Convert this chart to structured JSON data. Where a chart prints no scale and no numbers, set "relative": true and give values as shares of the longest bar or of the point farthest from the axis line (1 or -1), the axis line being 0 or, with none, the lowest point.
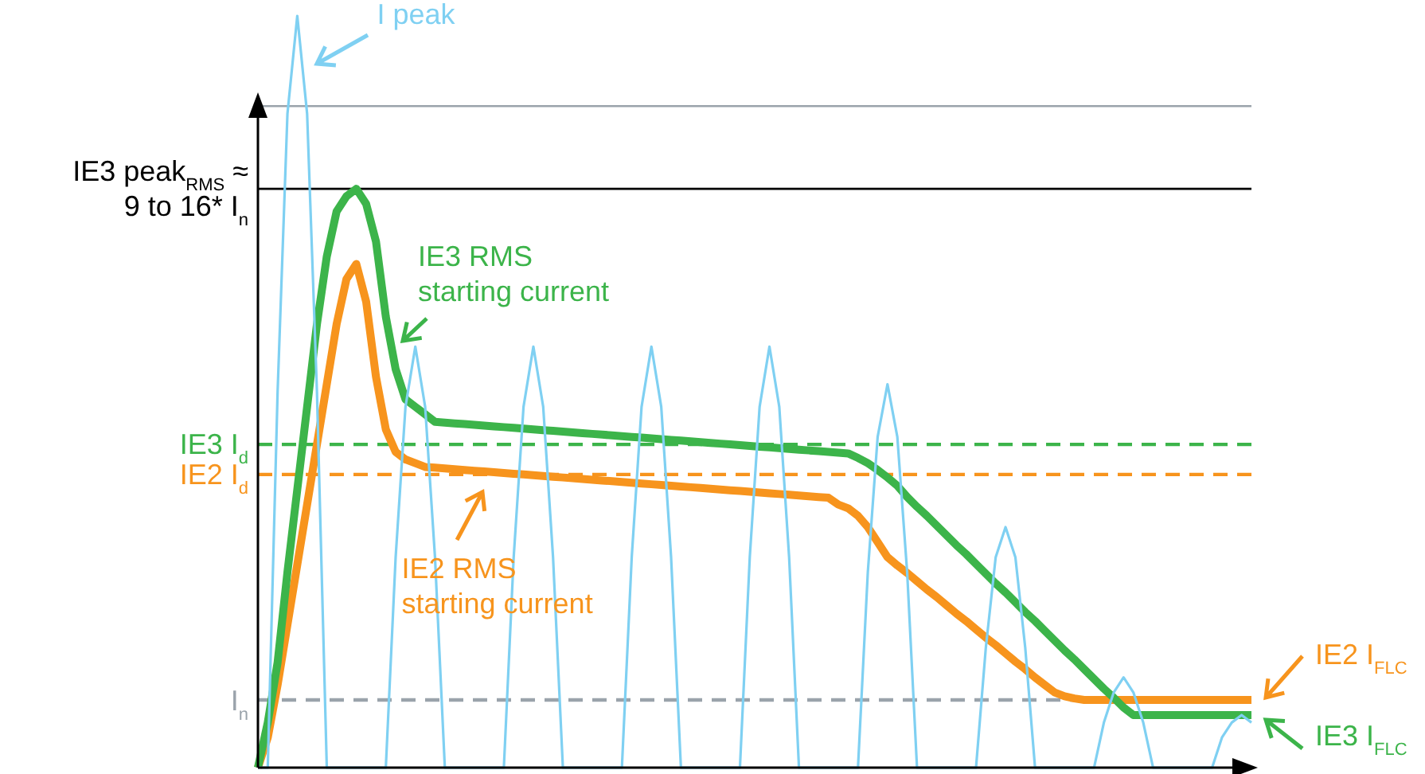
{
  "chart_data": {
    "type": "line",
    "relative": true,
    "categories": [
      null,
      null,
      null,
      null,
      null,
      null,
      null,
      null,
      null,
      null,
      null,
      null,
      null,
      null,
      null,
      null,
      null,
      null,
      null,
      null,
      null,
      null,
      null,
      null,
      null,
      null,
      null,
      null,
      null,
      null,
      null,
      null,
      null,
      null,
      null,
      null,
      null,
      null,
      null,
      null,
      null,
      null,
      null,
      null,
      null,
      null,
      null,
      null,
      null,
      null,
      null,
      null,
      null,
      null,
      null,
      null,
      null,
      null,
      null,
      null,
      null,
      null,
      null,
      null,
      null,
      null,
      null,
      null,
      null,
      null,
      null,
      null,
      null,
      null,
      null,
      null,
      null,
      null,
      null,
      null,
      null,
      null,
      null,
      null,
      null,
      null,
      null,
      null,
      null,
      null,
      null,
      null,
      null,
      null,
      null,
      null,
      null,
      null,
      null,
      null,
      null,
      null
    ],
    "series": [
      {
        "name": "I peak",
        "color": "#7fd0f2",
        "values": [
          0,
          0,
          0.5,
          0.87,
          1,
          0.87,
          0.5,
          0,
          0,
          0,
          0,
          0,
          0,
          0,
          0.28,
          0.48,
          0.56,
          0.48,
          0.28,
          0,
          0,
          0,
          0,
          0,
          0,
          0,
          0.28,
          0.48,
          0.56,
          0.48,
          0.28,
          0,
          0,
          0,
          0,
          0,
          0,
          0,
          0.28,
          0.48,
          0.56,
          0.48,
          0.28,
          0,
          0,
          0,
          0,
          0,
          0,
          0,
          0.28,
          0.48,
          0.56,
          0.48,
          0.28,
          0,
          0,
          0,
          0,
          0,
          0,
          0,
          0.26,
          0.44,
          0.51,
          0.44,
          0.26,
          0,
          0,
          0,
          0,
          0,
          0,
          0,
          0.16,
          0.28,
          0.32,
          0.28,
          0.16,
          0,
          0,
          0,
          0,
          0,
          0,
          0,
          0.06,
          0.1,
          0.12,
          0.1,
          0.06,
          0,
          0,
          0,
          0,
          0,
          0,
          0,
          0.04,
          0.06,
          0.07,
          0.06
        ]
      },
      {
        "name": "IE3 RMS\nstarting current",
        "color": "#3cb44a",
        "values": [
          0,
          0.06,
          0.14,
          0.26,
          0.37,
          0.48,
          0.59,
          0.68,
          0.74,
          0.76,
          0.77,
          0.75,
          0.7,
          0.6,
          0.53,
          0.49,
          0.48,
          0.47,
          0.46,
          0.459,
          0.458,
          0.457,
          0.456,
          0.455,
          0.454,
          0.453,
          0.452,
          0.451,
          0.45,
          0.449,
          0.448,
          0.447,
          0.446,
          0.445,
          0.444,
          0.443,
          0.442,
          0.441,
          0.44,
          0.439,
          0.438,
          0.437,
          0.436,
          0.435,
          0.434,
          0.433,
          0.432,
          0.431,
          0.43,
          0.429,
          0.428,
          0.427,
          0.426,
          0.425,
          0.424,
          0.423,
          0.422,
          0.421,
          0.42,
          0.419,
          0.418,
          0.412,
          0.405,
          0.396,
          0.386,
          0.375,
          0.36,
          0.347,
          0.335,
          0.322,
          0.309,
          0.296,
          0.284,
          0.271,
          0.258,
          0.245,
          0.233,
          0.22,
          0.207,
          0.195,
          0.182,
          0.169,
          0.156,
          0.144,
          0.131,
          0.118,
          0.105,
          0.093,
          0.08,
          0.07,
          0.07,
          0.07,
          0.07,
          0.07,
          0.07,
          0.07,
          0.07,
          0.07,
          0.07,
          0.07,
          0.07,
          0.07
        ]
      },
      {
        "name": "IE2 RMS\nstarting current",
        "color": "#f7941d",
        "values": [
          0,
          0.04,
          0.11,
          0.19,
          0.27,
          0.35,
          0.43,
          0.51,
          0.59,
          0.65,
          0.67,
          0.62,
          0.52,
          0.45,
          0.42,
          0.41,
          0.405,
          0.4,
          0.399,
          0.398,
          0.397,
          0.396,
          0.395,
          0.394,
          0.393,
          0.392,
          0.391,
          0.39,
          0.389,
          0.388,
          0.387,
          0.386,
          0.385,
          0.384,
          0.383,
          0.382,
          0.381,
          0.38,
          0.379,
          0.378,
          0.377,
          0.376,
          0.375,
          0.374,
          0.373,
          0.372,
          0.371,
          0.37,
          0.369,
          0.368,
          0.367,
          0.366,
          0.365,
          0.364,
          0.363,
          0.362,
          0.361,
          0.36,
          0.359,
          0.35,
          0.345,
          0.335,
          0.32,
          0.3,
          0.28,
          0.269,
          0.259,
          0.248,
          0.237,
          0.227,
          0.216,
          0.205,
          0.195,
          0.184,
          0.173,
          0.163,
          0.152,
          0.141,
          0.131,
          0.12,
          0.11,
          0.1,
          0.095,
          0.092,
          0.09,
          0.09,
          0.09,
          0.09,
          0.09,
          0.09,
          0.09,
          0.09,
          0.09,
          0.09,
          0.09,
          0.09,
          0.09,
          0.09,
          0.09,
          0.09,
          0.09,
          0.09
        ]
      }
    ],
    "ref_lines": [
      {
        "axis": "y",
        "value": 0.88,
        "color": "#9aa3ab",
        "line_style": "solid"
      },
      {
        "axis": "y",
        "value": 0.77,
        "label": "IE3 peak$_{RMS}$ ≈\n9 to 16* I$_{n}$",
        "color": "#000000",
        "line_style": "solid"
      },
      {
        "axis": "y",
        "value": 0.43,
        "label": "IE3 I$_{d}$",
        "color": "#3cb44a",
        "line_style": "dashed"
      },
      {
        "axis": "y",
        "value": 0.39,
        "label": "IE2 I$_{d}$",
        "color": "#f7941d",
        "line_style": "dashed"
      },
      {
        "axis": "y",
        "value": 0.09,
        "label": "I$_{n}$",
        "color": "#9aa3ab",
        "line_style": "dashed"
      }
    ],
    "annotations": [
      "IE2 I$_{FLC}$",
      "IE3 I$_{FLC}$"
    ]
  }
}
